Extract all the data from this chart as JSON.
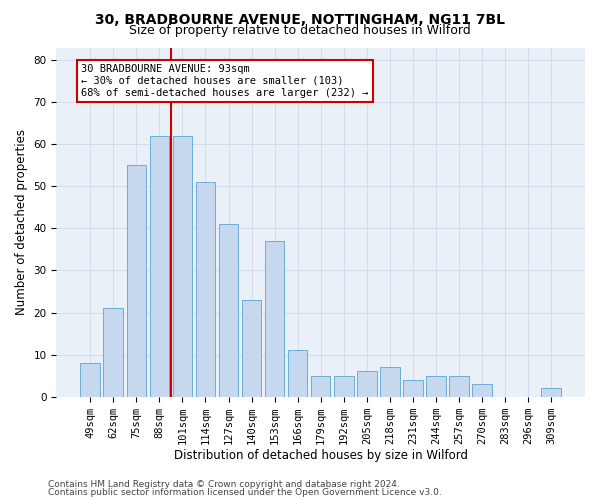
{
  "title1": "30, BRADBOURNE AVENUE, NOTTINGHAM, NG11 7BL",
  "title2": "Size of property relative to detached houses in Wilford",
  "xlabel": "Distribution of detached houses by size in Wilford",
  "ylabel": "Number of detached properties",
  "categories": [
    "49sqm",
    "62sqm",
    "75sqm",
    "88sqm",
    "101sqm",
    "114sqm",
    "127sqm",
    "140sqm",
    "153sqm",
    "166sqm",
    "179sqm",
    "192sqm",
    "205sqm",
    "218sqm",
    "231sqm",
    "244sqm",
    "257sqm",
    "270sqm",
    "283sqm",
    "296sqm",
    "309sqm"
  ],
  "values": [
    8,
    21,
    55,
    62,
    62,
    51,
    41,
    23,
    37,
    11,
    5,
    5,
    6,
    7,
    4,
    5,
    5,
    3,
    0,
    0,
    2
  ],
  "bar_color": "#c5d8ed",
  "bar_edge_color": "#6aaed6",
  "grid_color": "#d0d8e8",
  "red_line_index": 3,
  "annotation_text": "30 BRADBOURNE AVENUE: 93sqm\n← 30% of detached houses are smaller (103)\n68% of semi-detached houses are larger (232) →",
  "annotation_box_color": "#ffffff",
  "annotation_box_edge": "#cc0000",
  "red_line_color": "#cc0000",
  "ylim": [
    0,
    83
  ],
  "yticks": [
    0,
    10,
    20,
    30,
    40,
    50,
    60,
    70,
    80
  ],
  "background_color": "#eaf0f8",
  "footer1": "Contains HM Land Registry data © Crown copyright and database right 2024.",
  "footer2": "Contains public sector information licensed under the Open Government Licence v3.0.",
  "title1_fontsize": 10,
  "title2_fontsize": 9,
  "xlabel_fontsize": 8.5,
  "ylabel_fontsize": 8.5,
  "tick_fontsize": 7.5,
  "annotation_fontsize": 7.5,
  "footer_fontsize": 6.5
}
